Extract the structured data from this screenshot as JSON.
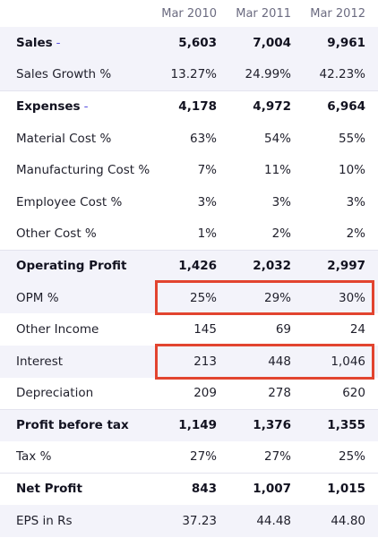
{
  "columns": [
    "Mar 2010",
    "Mar 2011",
    "Mar 2012"
  ],
  "rows": [
    {
      "label": "Sales",
      "expand": "-",
      "values": [
        "5,603",
        "7,004",
        "9,961"
      ],
      "bold": true,
      "shaded": true
    },
    {
      "label": "Sales Growth %",
      "expand": "",
      "values": [
        "13.27%",
        "24.99%",
        "42.23%"
      ],
      "bold": false,
      "shaded": true
    },
    {
      "label": "Expenses",
      "expand": "-",
      "values": [
        "4,178",
        "4,972",
        "6,964"
      ],
      "bold": true,
      "shaded": false
    },
    {
      "label": "Material Cost %",
      "expand": "",
      "values": [
        "63%",
        "54%",
        "55%"
      ],
      "bold": false,
      "shaded": false
    },
    {
      "label": "Manufacturing Cost %",
      "expand": "",
      "values": [
        "7%",
        "11%",
        "10%"
      ],
      "bold": false,
      "shaded": false
    },
    {
      "label": "Employee Cost %",
      "expand": "",
      "values": [
        "3%",
        "3%",
        "3%"
      ],
      "bold": false,
      "shaded": false
    },
    {
      "label": "Other Cost %",
      "expand": "",
      "values": [
        "1%",
        "2%",
        "2%"
      ],
      "bold": false,
      "shaded": false
    },
    {
      "label": "Operating Profit",
      "expand": "",
      "values": [
        "1,426",
        "2,032",
        "2,997"
      ],
      "bold": true,
      "shaded": true
    },
    {
      "label": "OPM %",
      "expand": "",
      "values": [
        "25%",
        "29%",
        "30%"
      ],
      "bold": false,
      "shaded": true
    },
    {
      "label": "Other Income",
      "expand": "",
      "values": [
        "145",
        "69",
        "24"
      ],
      "bold": false,
      "shaded": false
    },
    {
      "label": "Interest",
      "expand": "",
      "values": [
        "213",
        "448",
        "1,046"
      ],
      "bold": false,
      "shaded": true
    },
    {
      "label": "Depreciation",
      "expand": "",
      "values": [
        "209",
        "278",
        "620"
      ],
      "bold": false,
      "shaded": false
    },
    {
      "label": "Profit before tax",
      "expand": "",
      "values": [
        "1,149",
        "1,376",
        "1,355"
      ],
      "bold": true,
      "shaded": true
    },
    {
      "label": "Tax %",
      "expand": "",
      "values": [
        "27%",
        "27%",
        "25%"
      ],
      "bold": false,
      "shaded": false
    },
    {
      "label": "Net Profit",
      "expand": "",
      "values": [
        "843",
        "1,007",
        "1,015"
      ],
      "bold": true,
      "shaded": false
    },
    {
      "label": "EPS in Rs",
      "expand": "",
      "values": [
        "37.23",
        "44.48",
        "44.80"
      ],
      "bold": false,
      "shaded": true
    }
  ],
  "highlights": [
    {
      "row_label": "OPM %",
      "color": "#e2442f"
    },
    {
      "row_label": "Interest",
      "color": "#e2442f"
    }
  ],
  "colors": {
    "accent": "#5b54e0",
    "highlight": "#e2442f",
    "stripe": "#f3f3fa"
  }
}
